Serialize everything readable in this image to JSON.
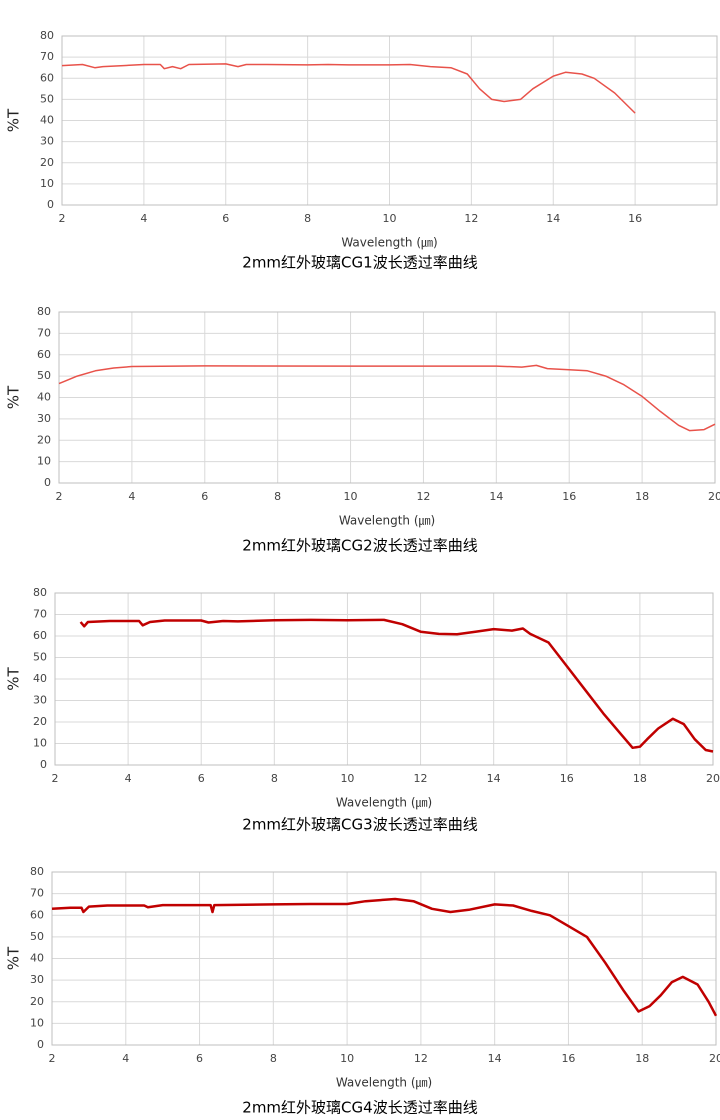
{
  "chart_data": [
    {
      "type": "line",
      "title": "2mm红外玻璃CG1波长透过率曲线",
      "xlabel": "Wavelength (㎛)",
      "ylabel": "%T",
      "xlim": [
        2,
        18
      ],
      "xticks": [
        2,
        4,
        6,
        8,
        10,
        12,
        14,
        16
      ],
      "ylim": [
        0,
        80
      ],
      "yticks": [
        0,
        10,
        20,
        30,
        40,
        50,
        60,
        70,
        80
      ],
      "grid": true,
      "series": [
        {
          "color": "#e8524a",
          "x": [
            2,
            2.5,
            2.8,
            3,
            3.5,
            4,
            4.4,
            4.5,
            4.7,
            4.9,
            5.1,
            6,
            6.3,
            6.5,
            7,
            8,
            8.5,
            9,
            10,
            10.5,
            11,
            11.5,
            11.9,
            12.2,
            12.5,
            12.8,
            13.2,
            13.5,
            14,
            14.3,
            14.7,
            15,
            15.5,
            16
          ],
          "values": [
            66,
            66.5,
            65,
            65.5,
            66,
            66.5,
            66.5,
            64.5,
            65.5,
            64.5,
            66.5,
            66.8,
            65.5,
            66.5,
            66.5,
            66.3,
            66.5,
            66.3,
            66.3,
            66.5,
            65.5,
            65,
            62,
            55,
            50,
            49,
            50,
            55,
            61,
            62.8,
            62,
            60,
            53,
            43.5
          ]
        }
      ]
    },
    {
      "type": "line",
      "title": "2mm红外玻璃CG2波长透过率曲线",
      "xlabel": "Wavelength (㎛)",
      "ylabel": "%T",
      "xlim": [
        2,
        20
      ],
      "xticks": [
        2,
        4,
        6,
        8,
        10,
        12,
        14,
        16,
        18,
        20
      ],
      "ylim": [
        0,
        80
      ],
      "yticks": [
        0,
        10,
        20,
        30,
        40,
        50,
        60,
        70,
        80
      ],
      "grid": true,
      "series": [
        {
          "color": "#e8524a",
          "x": [
            2,
            2.5,
            3,
            3.5,
            4,
            6,
            10,
            14,
            14.7,
            15.1,
            15.4,
            16,
            16.5,
            17,
            17.5,
            18,
            18.5,
            19,
            19.3,
            19.7,
            20
          ],
          "values": [
            46.5,
            50,
            52.5,
            53.8,
            54.5,
            54.8,
            54.7,
            54.7,
            54.2,
            55,
            53.5,
            53,
            52.5,
            50,
            46,
            40.5,
            33.5,
            27,
            24.5,
            25,
            27.5
          ]
        }
      ]
    },
    {
      "type": "line",
      "title": "2mm红外玻璃CG3波长透过率曲线",
      "xlabel": "Wavelength (㎛)",
      "ylabel": "%T",
      "xlim": [
        2,
        20
      ],
      "xticks": [
        2,
        4,
        6,
        8,
        10,
        12,
        14,
        16,
        18,
        20
      ],
      "ylim": [
        0,
        80
      ],
      "yticks": [
        0,
        10,
        20,
        30,
        40,
        50,
        60,
        70,
        80
      ],
      "grid": true,
      "series": [
        {
          "color": "#c00000",
          "x": [
            2.7,
            2.8,
            2.9,
            3.5,
            4.3,
            4.4,
            4.6,
            5,
            6,
            6.2,
            6.6,
            7,
            8,
            9,
            10,
            11,
            11.5,
            12,
            12.5,
            13,
            13.5,
            14,
            14.5,
            14.8,
            15,
            15.5,
            16,
            16.5,
            17,
            17.5,
            17.8,
            18,
            18.2,
            18.5,
            18.9,
            19.2,
            19.5,
            19.8,
            20
          ],
          "values": [
            66.5,
            64.5,
            66.5,
            67,
            67,
            65,
            66.5,
            67.2,
            67.2,
            66.3,
            67,
            66.8,
            67.3,
            67.5,
            67.3,
            67.5,
            65.5,
            62,
            61,
            60.8,
            62,
            63.2,
            62.5,
            63.5,
            61,
            57,
            46,
            35,
            24,
            14,
            8,
            8.5,
            12,
            17,
            21.5,
            19,
            12,
            7,
            6.3
          ]
        }
      ]
    },
    {
      "type": "line",
      "title": "2mm红外玻璃CG4波长透过率曲线",
      "xlabel": "Wavelength (㎛)",
      "ylabel": "%T",
      "xlim": [
        2,
        20
      ],
      "xticks": [
        2,
        4,
        6,
        8,
        10,
        12,
        14,
        16,
        18,
        20
      ],
      "ylim": [
        0,
        80
      ],
      "yticks": [
        0,
        10,
        20,
        30,
        40,
        50,
        60,
        70,
        80
      ],
      "grid": true,
      "series": [
        {
          "color": "#c00000",
          "x": [
            2,
            2.5,
            2.8,
            2.85,
            3,
            3.5,
            4.5,
            4.6,
            5,
            6.3,
            6.35,
            6.4,
            8,
            9,
            10,
            10.5,
            11.3,
            11.8,
            12.3,
            12.8,
            13.3,
            14,
            14.5,
            15,
            15.5,
            16,
            16.5,
            17,
            17.5,
            17.9,
            18.2,
            18.5,
            18.8,
            19.1,
            19.5,
            19.8,
            20
          ],
          "values": [
            63,
            63.5,
            63.5,
            61.5,
            64,
            64.5,
            64.5,
            63.7,
            64.7,
            64.7,
            61.5,
            64.7,
            65,
            65.2,
            65.2,
            66.5,
            67.5,
            66.5,
            63,
            61.5,
            62.5,
            65,
            64.5,
            62,
            60,
            55,
            50,
            38,
            25,
            15.5,
            18,
            23,
            29,
            31.5,
            28,
            20,
            13.5
          ]
        }
      ]
    }
  ]
}
